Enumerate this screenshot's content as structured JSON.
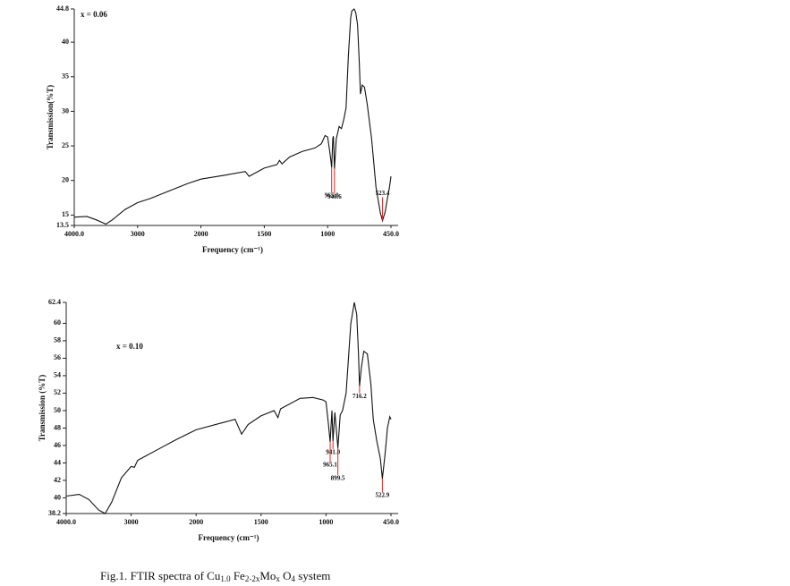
{
  "chart_data": [
    {
      "type": "line",
      "title": "x = 0.06",
      "x_label": "Frequency (cm⁻¹)",
      "y_label": "Transmission(%T)",
      "color": "#111111",
      "annotation_color": "#e02424",
      "x": [
        4000,
        3800,
        3650,
        3500,
        3400,
        3200,
        3000,
        2800,
        2500,
        2200,
        2000,
        1800,
        1650,
        1620,
        1580,
        1500,
        1400,
        1380,
        1360,
        1300,
        1200,
        1100,
        1050,
        1020,
        1000,
        980,
        965,
        955,
        950,
        940.6,
        925,
        900,
        880,
        860,
        840,
        820,
        800,
        790,
        770,
        756,
        740,
        725,
        715,
        700,
        680,
        656,
        618,
        580,
        542,
        523.4,
        500,
        480,
        465,
        450
      ],
      "values": [
        14.7,
        14.8,
        14.3,
        13.7,
        14.3,
        15.8,
        16.8,
        17.4,
        18.5,
        19.6,
        20.2,
        20.8,
        21.3,
        20.6,
        21.0,
        21.8,
        22.3,
        22.9,
        22.4,
        23.4,
        24.2,
        24.7,
        25.3,
        26.5,
        26.3,
        24,
        21.9,
        26.1,
        26.4,
        21.7,
        26,
        27.8,
        27.5,
        28.8,
        30.5,
        38,
        43.5,
        44.5,
        44.8,
        44.3,
        42.5,
        37,
        32.5,
        33.8,
        33.5,
        31,
        26,
        19,
        15.3,
        14.2,
        15.5,
        17.5,
        18.8,
        20.6
      ],
      "xlim": [
        4000,
        450
      ],
      "xticks": [
        {
          "value": 4000,
          "label": "4000.0"
        },
        3000,
        2000,
        1500,
        1000,
        {
          "value": 450,
          "label": "450.0"
        }
      ],
      "ylim": [
        13.5,
        44.8
      ],
      "yticks": [
        44.8,
        40,
        35,
        30,
        25,
        20,
        15,
        13.5
      ],
      "annotations": [
        {
          "label": "965.0",
          "x": 965,
          "y": 21.9
        },
        {
          "label": "940.6",
          "x": 940.6,
          "y": 21.7
        },
        {
          "label": "523.4",
          "x": 523.4,
          "y": 14.2
        }
      ]
    },
    {
      "type": "line",
      "title": "x = 0.10",
      "x_label": "Frequency (cm⁻¹)",
      "y_label": "Transmission (%T)",
      "color": "#111111",
      "annotation_color": "#e02424",
      "x": [
        4000,
        3800,
        3650,
        3500,
        3400,
        3300,
        3150,
        3000,
        2950,
        2900,
        2600,
        2300,
        2000,
        1800,
        1700,
        1650,
        1600,
        1500,
        1400,
        1370,
        1350,
        1200,
        1100,
        1020,
        1000,
        980,
        965.1,
        950,
        941,
        925,
        899.5,
        880,
        860,
        830,
        800,
        790,
        760,
        740,
        725,
        716.2,
        700,
        680,
        650,
        620,
        600,
        570,
        540,
        522.9,
        500,
        480,
        460,
        450
      ],
      "values": [
        40.2,
        40.4,
        39.8,
        38.6,
        38.2,
        39.5,
        42.3,
        43.6,
        43.5,
        44.3,
        45.5,
        46.7,
        47.8,
        48.6,
        49,
        47.3,
        48.4,
        49.4,
        50,
        49.2,
        50.2,
        51.4,
        51.5,
        51.2,
        51,
        48.5,
        46.4,
        50,
        46.5,
        49.8,
        45.7,
        49.5,
        50,
        52,
        58,
        60,
        62.4,
        61,
        56.5,
        52.8,
        55,
        56.8,
        56.5,
        53,
        49,
        46.5,
        44.5,
        42.2,
        45,
        48,
        49.3,
        49
      ],
      "xlim": [
        4000,
        450
      ],
      "xticks": [
        {
          "value": 4000,
          "label": "4000.0"
        },
        3000,
        2000,
        1500,
        1000,
        {
          "value": 450,
          "label": "450.0"
        }
      ],
      "ylim": [
        38.2,
        62.4
      ],
      "yticks": [
        62.4,
        60,
        58,
        56,
        54,
        52,
        50,
        48,
        46,
        44,
        42,
        40,
        38.2
      ],
      "annotations": [
        {
          "label": "941.0",
          "x": 941,
          "y": 46.5
        },
        {
          "label": "965.1",
          "x": 965.1,
          "y": 46.4
        },
        {
          "label": "899.5",
          "x": 899.5,
          "y": 45.7
        },
        {
          "label": "716.2",
          "x": 716.2,
          "y": 52.8
        },
        {
          "label": "522.9",
          "x": 522.9,
          "y": 42.2
        }
      ]
    }
  ],
  "caption": [
    "Fig.1. FTIR spectra of Cu",
    "1.0",
    " Fe",
    "2-2x",
    "Mo",
    "x",
    " O",
    "4",
    " system"
  ]
}
